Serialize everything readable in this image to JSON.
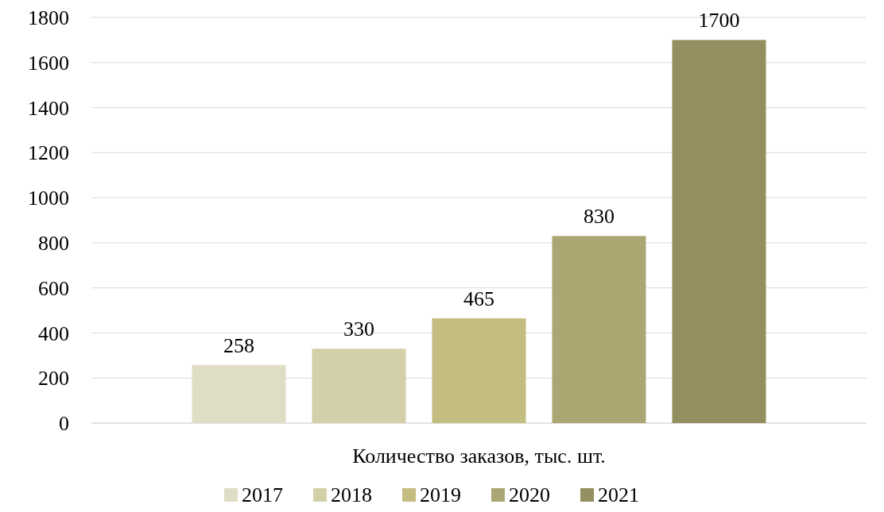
{
  "chart_data": {
    "type": "bar",
    "categories": [
      "Количество заказов, тыс. шт."
    ],
    "series": [
      {
        "name": "2017",
        "color": "#e0ddc6",
        "values": [
          258
        ]
      },
      {
        "name": "2018",
        "color": "#d3cfa9",
        "values": [
          330
        ]
      },
      {
        "name": "2019",
        "color": "#c3bd81",
        "values": [
          465
        ]
      },
      {
        "name": "2020",
        "color": "#aca772",
        "values": [
          830
        ]
      },
      {
        "name": "2021",
        "color": "#938f5f",
        "values": [
          1700
        ]
      }
    ],
    "ylim": [
      0,
      1800
    ],
    "yticks": [
      0,
      200,
      400,
      600,
      800,
      1000,
      1200,
      1400,
      1600,
      1800
    ],
    "grid": "y",
    "legend": "bottom",
    "data_labels": true
  }
}
